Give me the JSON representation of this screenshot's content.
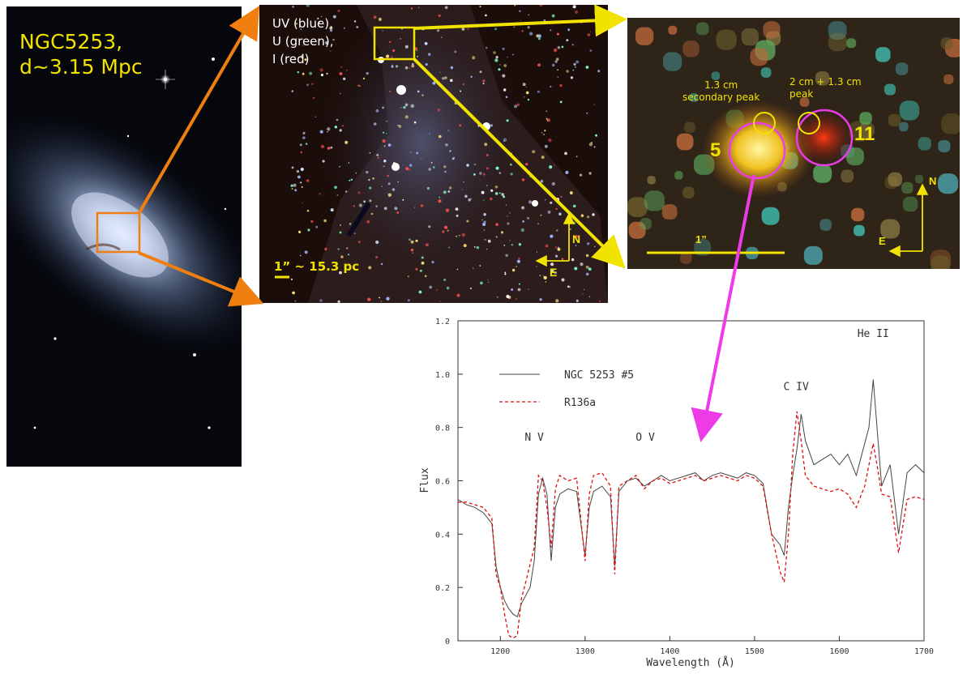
{
  "galaxy": {
    "title": "NGC5253,\nd~3.15 Mpc"
  },
  "hst": {
    "filters": "UV (blue),\nU (green),\nI (red)",
    "scale_label": "1” ~ 15.3 pc",
    "north": "N",
    "east": "E"
  },
  "zoom": {
    "peak1_label": "1.3 cm\nsecondary peak",
    "peak2_label": "2 cm + 1.3 cm\npeak",
    "source5": "5",
    "source11": "11",
    "scale_label": "1”",
    "north": "N",
    "east": "E"
  },
  "colors": {
    "arrow_orange": "#f07f10",
    "arrow_yellow": "#f2e200",
    "arrow_magenta": "#ee3be8",
    "circle_magenta": "#ee3be8",
    "series_ngc": "#444444",
    "series_r136": "#e01010"
  },
  "chart_data": {
    "type": "line",
    "xlabel": "Wavelength  (Å)",
    "ylabel": "Flux",
    "xlim": [
      1150,
      1700
    ],
    "ylim": [
      0,
      1.2
    ],
    "xticks": [
      1200,
      1300,
      1400,
      1500,
      1600,
      1700
    ],
    "yticks": [
      0,
      0.2,
      0.4,
      0.6,
      0.8,
      1.0,
      1.2
    ],
    "yticklabels": [
      "0",
      "0.2",
      "0.4",
      "0.6",
      "0.8",
      "1.0",
      "1.2"
    ],
    "legend": [
      {
        "name": "NGC 5253 #5",
        "style": "solid"
      },
      {
        "name": "R136a",
        "style": "dashed"
      }
    ],
    "legend_position": "top-left",
    "annotations": [
      {
        "text": "N V",
        "x": 1240
      },
      {
        "text": "O V",
        "x": 1371
      },
      {
        "text": "C IV",
        "x": 1549
      },
      {
        "text": "He II",
        "x": 1640
      }
    ],
    "series": [
      {
        "name": "NGC 5253 #5",
        "x": [
          1150,
          1160,
          1170,
          1180,
          1190,
          1195,
          1200,
          1205,
          1210,
          1215,
          1220,
          1225,
          1230,
          1235,
          1240,
          1245,
          1250,
          1255,
          1260,
          1265,
          1270,
          1280,
          1290,
          1300,
          1305,
          1310,
          1320,
          1330,
          1335,
          1340,
          1350,
          1360,
          1370,
          1380,
          1390,
          1400,
          1410,
          1420,
          1430,
          1440,
          1450,
          1460,
          1470,
          1480,
          1490,
          1500,
          1510,
          1520,
          1530,
          1535,
          1540,
          1545,
          1550,
          1555,
          1560,
          1570,
          1580,
          1590,
          1600,
          1610,
          1620,
          1630,
          1635,
          1640,
          1645,
          1650,
          1660,
          1670,
          1680,
          1690,
          1700
        ],
        "y": [
          0.53,
          0.51,
          0.5,
          0.48,
          0.44,
          0.28,
          0.2,
          0.15,
          0.12,
          0.1,
          0.09,
          0.14,
          0.17,
          0.2,
          0.3,
          0.55,
          0.61,
          0.55,
          0.3,
          0.5,
          0.55,
          0.57,
          0.56,
          0.32,
          0.5,
          0.56,
          0.58,
          0.54,
          0.28,
          0.56,
          0.6,
          0.61,
          0.58,
          0.6,
          0.62,
          0.6,
          0.61,
          0.62,
          0.63,
          0.6,
          0.62,
          0.63,
          0.62,
          0.61,
          0.63,
          0.62,
          0.59,
          0.4,
          0.36,
          0.32,
          0.5,
          0.62,
          0.72,
          0.85,
          0.75,
          0.66,
          0.68,
          0.7,
          0.66,
          0.7,
          0.62,
          0.74,
          0.8,
          0.98,
          0.78,
          0.58,
          0.66,
          0.4,
          0.63,
          0.66,
          0.63
        ]
      },
      {
        "name": "R136a",
        "x": [
          1150,
          1160,
          1170,
          1180,
          1190,
          1195,
          1200,
          1205,
          1210,
          1215,
          1220,
          1225,
          1230,
          1240,
          1245,
          1250,
          1255,
          1260,
          1265,
          1270,
          1280,
          1290,
          1300,
          1305,
          1310,
          1320,
          1330,
          1335,
          1340,
          1350,
          1360,
          1370,
          1380,
          1390,
          1400,
          1410,
          1420,
          1430,
          1440,
          1450,
          1460,
          1470,
          1480,
          1490,
          1500,
          1510,
          1520,
          1530,
          1535,
          1540,
          1545,
          1550,
          1555,
          1560,
          1570,
          1580,
          1590,
          1600,
          1610,
          1620,
          1630,
          1640,
          1645,
          1650,
          1660,
          1670,
          1680,
          1690,
          1700
        ],
        "y": [
          0.52,
          0.52,
          0.51,
          0.5,
          0.46,
          0.25,
          0.2,
          0.1,
          0.02,
          0.01,
          0.02,
          0.16,
          0.22,
          0.35,
          0.62,
          0.6,
          0.5,
          0.35,
          0.57,
          0.62,
          0.6,
          0.61,
          0.3,
          0.55,
          0.62,
          0.63,
          0.58,
          0.25,
          0.58,
          0.6,
          0.62,
          0.57,
          0.6,
          0.61,
          0.59,
          0.6,
          0.61,
          0.62,
          0.6,
          0.61,
          0.62,
          0.61,
          0.6,
          0.62,
          0.61,
          0.58,
          0.4,
          0.26,
          0.22,
          0.4,
          0.7,
          0.86,
          0.75,
          0.62,
          0.58,
          0.57,
          0.56,
          0.57,
          0.55,
          0.5,
          0.58,
          0.74,
          0.65,
          0.55,
          0.54,
          0.33,
          0.53,
          0.54,
          0.53
        ]
      }
    ]
  }
}
